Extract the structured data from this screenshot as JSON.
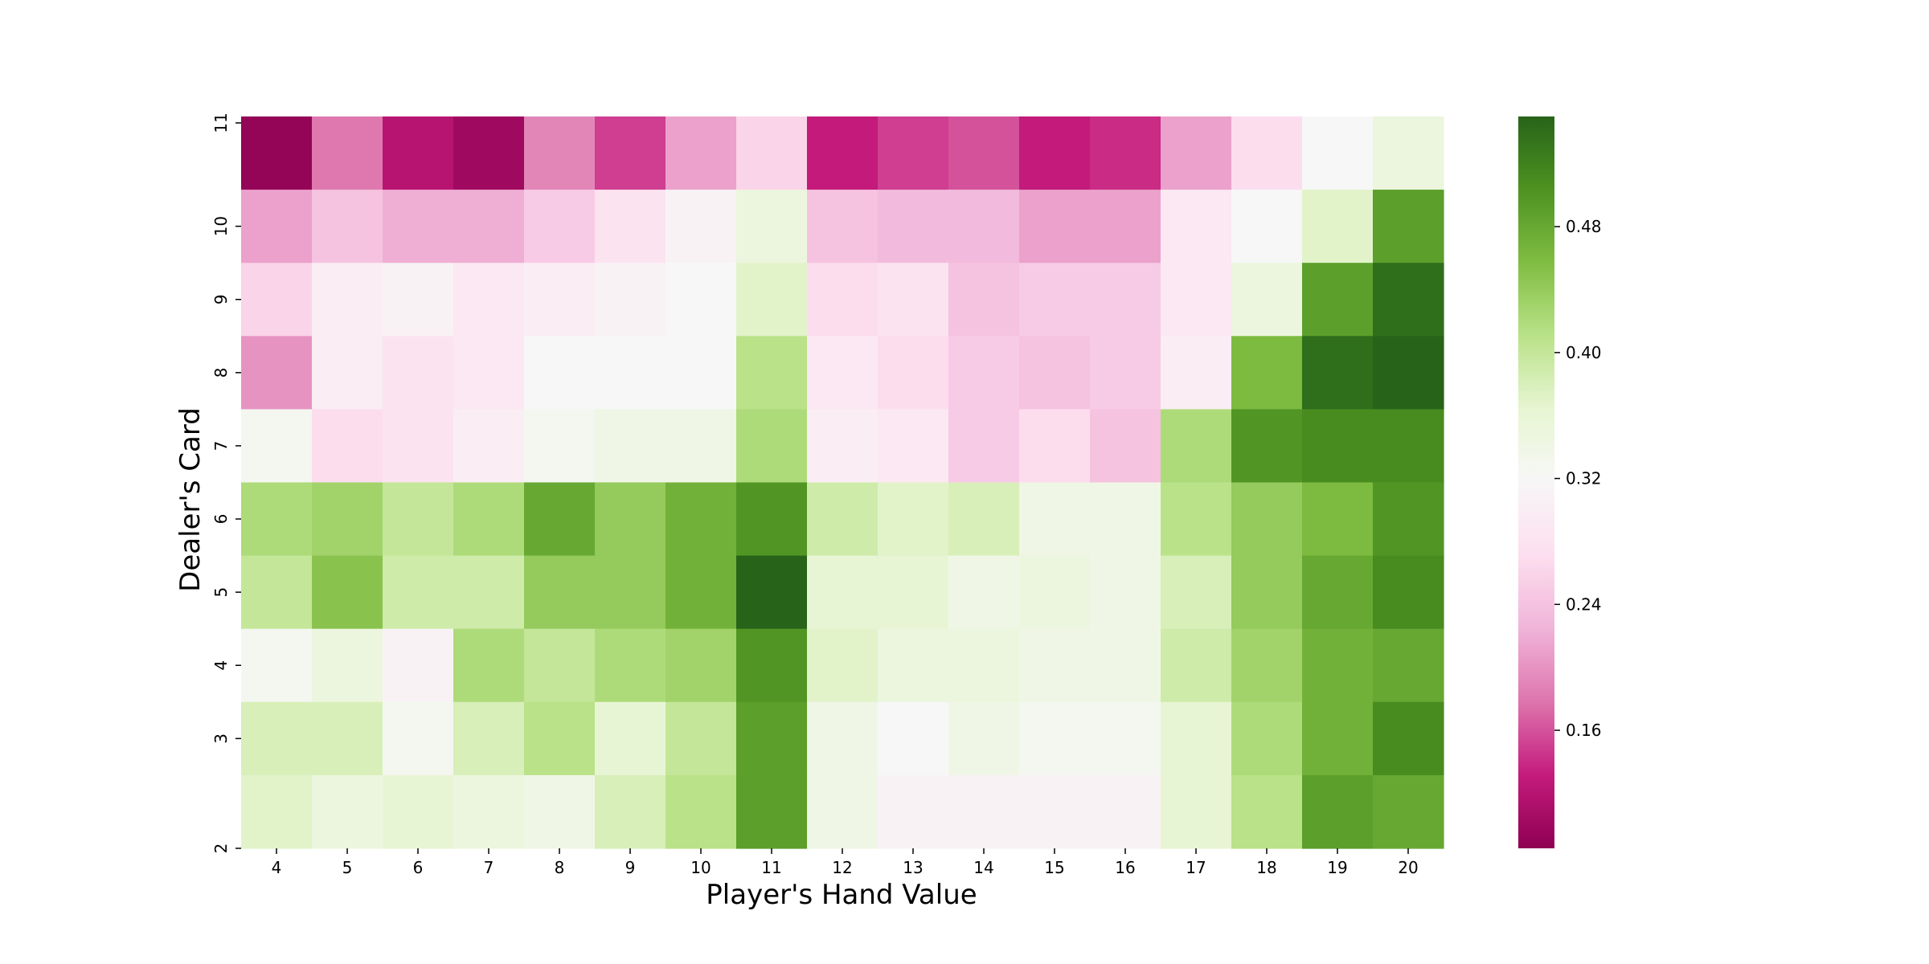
{
  "chart_data": {
    "type": "heatmap",
    "title": "",
    "xlabel": "Player's Hand Value",
    "ylabel": "Dealer's Card",
    "x_categories": [
      "4",
      "5",
      "6",
      "7",
      "8",
      "9",
      "10",
      "11",
      "12",
      "13",
      "14",
      "15",
      "16",
      "17",
      "18",
      "19",
      "20"
    ],
    "y_categories": [
      "11",
      "10",
      "9",
      "8",
      "7",
      "6",
      "5",
      "4",
      "3",
      "2"
    ],
    "values": [
      [
        0.09,
        0.18,
        0.12,
        0.1,
        0.19,
        0.15,
        0.21,
        0.26,
        0.13,
        0.15,
        0.16,
        0.13,
        0.14,
        0.21,
        0.27,
        0.32,
        0.35
      ],
      [
        0.21,
        0.24,
        0.22,
        0.22,
        0.25,
        0.28,
        0.31,
        0.35,
        0.24,
        0.23,
        0.23,
        0.21,
        0.21,
        0.29,
        0.32,
        0.37,
        0.49
      ],
      [
        0.26,
        0.3,
        0.31,
        0.29,
        0.3,
        0.31,
        0.32,
        0.37,
        0.27,
        0.28,
        0.24,
        0.25,
        0.25,
        0.29,
        0.35,
        0.49,
        0.54
      ],
      [
        0.2,
        0.3,
        0.28,
        0.29,
        0.32,
        0.32,
        0.32,
        0.41,
        0.29,
        0.27,
        0.25,
        0.24,
        0.25,
        0.3,
        0.46,
        0.54,
        0.55
      ],
      [
        0.33,
        0.27,
        0.28,
        0.3,
        0.33,
        0.34,
        0.34,
        0.42,
        0.3,
        0.29,
        0.25,
        0.27,
        0.24,
        0.42,
        0.5,
        0.51,
        0.51
      ],
      [
        0.42,
        0.43,
        0.4,
        0.42,
        0.48,
        0.44,
        0.47,
        0.5,
        0.39,
        0.37,
        0.38,
        0.34,
        0.34,
        0.41,
        0.44,
        0.46,
        0.5
      ],
      [
        0.4,
        0.45,
        0.39,
        0.39,
        0.44,
        0.44,
        0.47,
        0.55,
        0.36,
        0.36,
        0.34,
        0.35,
        0.34,
        0.38,
        0.44,
        0.48,
        0.51
      ],
      [
        0.33,
        0.35,
        0.31,
        0.42,
        0.4,
        0.42,
        0.43,
        0.5,
        0.37,
        0.35,
        0.35,
        0.34,
        0.34,
        0.39,
        0.43,
        0.47,
        0.48
      ],
      [
        0.38,
        0.38,
        0.33,
        0.38,
        0.41,
        0.36,
        0.4,
        0.49,
        0.34,
        0.32,
        0.34,
        0.33,
        0.33,
        0.36,
        0.42,
        0.47,
        0.51
      ],
      [
        0.37,
        0.35,
        0.36,
        0.35,
        0.34,
        0.38,
        0.41,
        0.49,
        0.34,
        0.31,
        0.31,
        0.31,
        0.31,
        0.36,
        0.41,
        0.49,
        0.48
      ]
    ],
    "colorbar": {
      "min": 0.085,
      "max": 0.55,
      "ticks": [
        0.16,
        0.24,
        0.32,
        0.4,
        0.48
      ],
      "tick_labels": [
        "0.16",
        "0.24",
        "0.32",
        "0.40",
        "0.48"
      ],
      "colormap": "PiYG",
      "center": 0.32
    },
    "grid": false,
    "legend": "colorbar-right"
  }
}
